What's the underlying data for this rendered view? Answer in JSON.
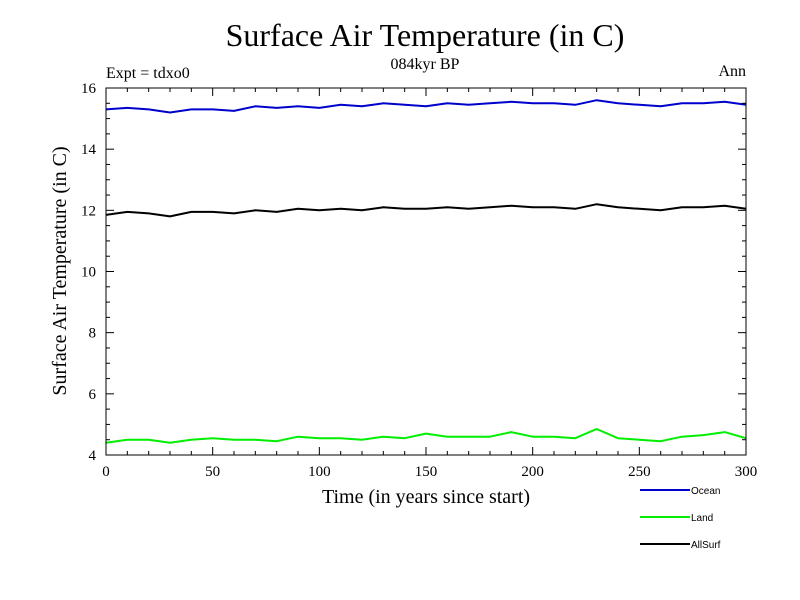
{
  "chart_data": {
    "type": "line",
    "title": "Surface Air Temperature (in C)",
    "subtitle": "084kyr BP",
    "annotation_left": "Expt = tdxo0",
    "annotation_right": "Ann",
    "xlabel": "Time (in years since start)",
    "ylabel": "Surface Air Temperature (in C)",
    "xlim": [
      0,
      300
    ],
    "ylim": [
      4,
      16
    ],
    "xticks": [
      0,
      50,
      100,
      150,
      200,
      250,
      300
    ],
    "yticks": [
      4,
      6,
      8,
      10,
      12,
      14,
      16
    ],
    "grid": false,
    "legend_position": "bottom-right, below plot",
    "series": [
      {
        "name": "Ocean",
        "color": "#0000cc",
        "x": [
          0,
          10,
          20,
          30,
          40,
          50,
          60,
          70,
          80,
          90,
          100,
          110,
          120,
          130,
          140,
          150,
          160,
          170,
          180,
          190,
          200,
          210,
          220,
          230,
          240,
          250,
          260,
          270,
          280,
          290,
          300
        ],
        "values": [
          15.3,
          15.35,
          15.3,
          15.2,
          15.3,
          15.3,
          15.25,
          15.4,
          15.35,
          15.4,
          15.35,
          15.45,
          15.4,
          15.5,
          15.45,
          15.4,
          15.5,
          15.45,
          15.5,
          15.55,
          15.5,
          15.5,
          15.45,
          15.6,
          15.5,
          15.45,
          15.4,
          15.5,
          15.5,
          15.55,
          15.45
        ]
      },
      {
        "name": "Land",
        "color": "#00ee00",
        "x": [
          0,
          10,
          20,
          30,
          40,
          50,
          60,
          70,
          80,
          90,
          100,
          110,
          120,
          130,
          140,
          150,
          160,
          170,
          180,
          190,
          200,
          210,
          220,
          230,
          240,
          250,
          260,
          270,
          280,
          290,
          300
        ],
        "values": [
          4.4,
          4.5,
          4.5,
          4.4,
          4.5,
          4.55,
          4.5,
          4.5,
          4.45,
          4.6,
          4.55,
          4.55,
          4.5,
          4.6,
          4.55,
          4.7,
          4.6,
          4.6,
          4.6,
          4.75,
          4.6,
          4.6,
          4.55,
          4.85,
          4.55,
          4.5,
          4.45,
          4.6,
          4.65,
          4.75,
          4.55
        ]
      },
      {
        "name": "AllSurf",
        "color": "#000000",
        "x": [
          0,
          10,
          20,
          30,
          40,
          50,
          60,
          70,
          80,
          90,
          100,
          110,
          120,
          130,
          140,
          150,
          160,
          170,
          180,
          190,
          200,
          210,
          220,
          230,
          240,
          250,
          260,
          270,
          280,
          290,
          300
        ],
        "values": [
          11.85,
          11.95,
          11.9,
          11.8,
          11.95,
          11.95,
          11.9,
          12.0,
          11.95,
          12.05,
          12.0,
          12.05,
          12.0,
          12.1,
          12.05,
          12.05,
          12.1,
          12.05,
          12.1,
          12.15,
          12.1,
          12.1,
          12.05,
          12.2,
          12.1,
          12.05,
          12.0,
          12.1,
          12.1,
          12.15,
          12.05
        ]
      }
    ]
  }
}
